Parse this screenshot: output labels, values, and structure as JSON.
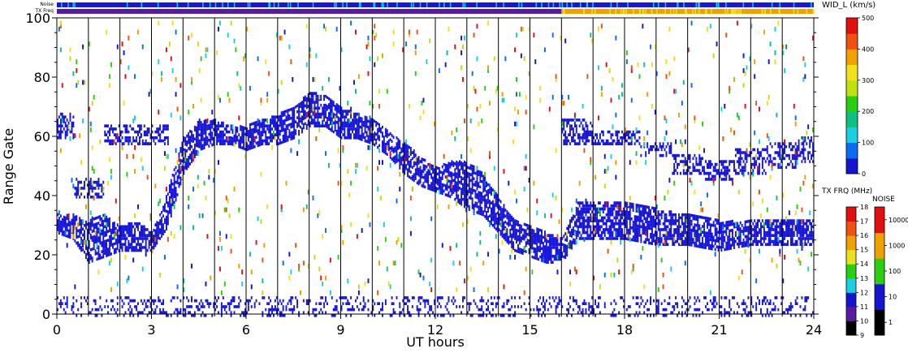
{
  "chart_data": {
    "type": "heatmap",
    "xlabel": "UT hours",
    "ylabel": "Range Gate",
    "xlim": [
      0,
      24
    ],
    "ylim": [
      0,
      100
    ],
    "x_ticks": [
      {
        "value": 0,
        "label": "0"
      },
      {
        "value": 3,
        "label": "3"
      },
      {
        "value": 6,
        "label": "6"
      },
      {
        "value": 9,
        "label": "9"
      },
      {
        "value": 12,
        "label": "12"
      },
      {
        "value": 15,
        "label": "15"
      },
      {
        "value": 18,
        "label": "18"
      },
      {
        "value": 21,
        "label": "21"
      },
      {
        "value": 24,
        "label": "24"
      }
    ],
    "y_ticks": [
      {
        "value": 0,
        "label": "0"
      },
      {
        "value": 20,
        "label": "20"
      },
      {
        "value": 40,
        "label": "40"
      },
      {
        "value": 60,
        "label": "60"
      },
      {
        "value": 80,
        "label": "80"
      },
      {
        "value": 100,
        "label": "100"
      }
    ],
    "hour_gridlines": [
      1,
      2,
      3,
      4,
      5,
      6,
      7,
      8,
      9,
      10,
      11,
      12,
      13,
      14,
      15,
      16,
      17,
      18,
      19,
      20,
      21,
      22,
      23
    ],
    "status_bars": [
      {
        "label": "Noise",
        "color": "#1a16d8",
        "speckle_color": "#18c8e8"
      },
      {
        "label": "TX Freq",
        "segments": [
          {
            "from": 0,
            "to": 16,
            "color": "#5a1aa0"
          },
          {
            "from": 16,
            "to": 24,
            "color": "#f0a000"
          }
        ]
      }
    ],
    "colorbars": [
      {
        "title": "WID_L (km/s)",
        "min": 0,
        "max": 500,
        "tick_labels": [
          "0",
          "100",
          "200",
          "300",
          "400",
          "500"
        ],
        "colors": [
          "#1515d0",
          "#0a6cf0",
          "#1ad0e0",
          "#10c080",
          "#2ad010",
          "#c0e010",
          "#f0e020",
          "#f0a000",
          "#f05010",
          "#e01010"
        ]
      },
      {
        "title": "TX FRQ (MHz)",
        "tick_labels": [
          "9",
          "10",
          "11",
          "12",
          "13",
          "14",
          "15",
          "16",
          "17",
          "18"
        ],
        "colors": [
          "#000000",
          "#5a1aa0",
          "#1515d0",
          "#1ad0e0",
          "#2ad010",
          "#e8e020",
          "#f0a000",
          "#f05010",
          "#e01010"
        ]
      },
      {
        "title": "NOISE",
        "tick_labels": [
          "1",
          "10",
          "100",
          "1000",
          "10000"
        ],
        "colors": [
          "#000000",
          "#1515d0",
          "#2ad010",
          "#f0a000",
          "#e01010"
        ]
      }
    ],
    "main_echo_band": [
      [
        0,
        28,
        34
      ],
      [
        0.5,
        26,
        34
      ],
      [
        1,
        18,
        32
      ],
      [
        1.5,
        20,
        34
      ],
      [
        2,
        22,
        30
      ],
      [
        2.5,
        22,
        32
      ],
      [
        3,
        22,
        28
      ],
      [
        3.5,
        30,
        42
      ],
      [
        4,
        48,
        60
      ],
      [
        4.5,
        56,
        66
      ],
      [
        5,
        58,
        66
      ],
      [
        5.5,
        58,
        64
      ],
      [
        6,
        56,
        64
      ],
      [
        6.5,
        58,
        66
      ],
      [
        7,
        58,
        68
      ],
      [
        7.5,
        60,
        70
      ],
      [
        8,
        64,
        76
      ],
      [
        8.5,
        64,
        74
      ],
      [
        9,
        60,
        70
      ],
      [
        9.5,
        60,
        68
      ],
      [
        10,
        58,
        66
      ],
      [
        10.5,
        54,
        62
      ],
      [
        11,
        48,
        58
      ],
      [
        11.5,
        44,
        54
      ],
      [
        12,
        42,
        50
      ],
      [
        12.5,
        40,
        52
      ],
      [
        13,
        36,
        52
      ],
      [
        13.5,
        34,
        48
      ],
      [
        14,
        28,
        40
      ],
      [
        14.5,
        22,
        32
      ],
      [
        15,
        20,
        30
      ],
      [
        15.5,
        18,
        28
      ],
      [
        16,
        18,
        26
      ],
      [
        16.5,
        26,
        38
      ],
      [
        17,
        26,
        38
      ],
      [
        18,
        26,
        38
      ],
      [
        19,
        24,
        36
      ],
      [
        20,
        24,
        34
      ],
      [
        21,
        22,
        32
      ],
      [
        22,
        24,
        32
      ],
      [
        23,
        24,
        32
      ],
      [
        24,
        24,
        32
      ]
    ],
    "upper_echo_band": [
      [
        0,
        60,
        68
      ],
      [
        1,
        40,
        46
      ],
      [
        2,
        58,
        64
      ],
      [
        3,
        58,
        64
      ],
      [
        16.5,
        58,
        66
      ],
      [
        17,
        58,
        62
      ],
      [
        18,
        58,
        62
      ],
      [
        19,
        54,
        58
      ],
      [
        20,
        48,
        54
      ],
      [
        21,
        46,
        52
      ],
      [
        22,
        48,
        56
      ],
      [
        23,
        50,
        58
      ],
      [
        24,
        52,
        60
      ]
    ],
    "scatter_density": 0.055,
    "ground_scatter_gates": [
      0,
      6
    ]
  }
}
